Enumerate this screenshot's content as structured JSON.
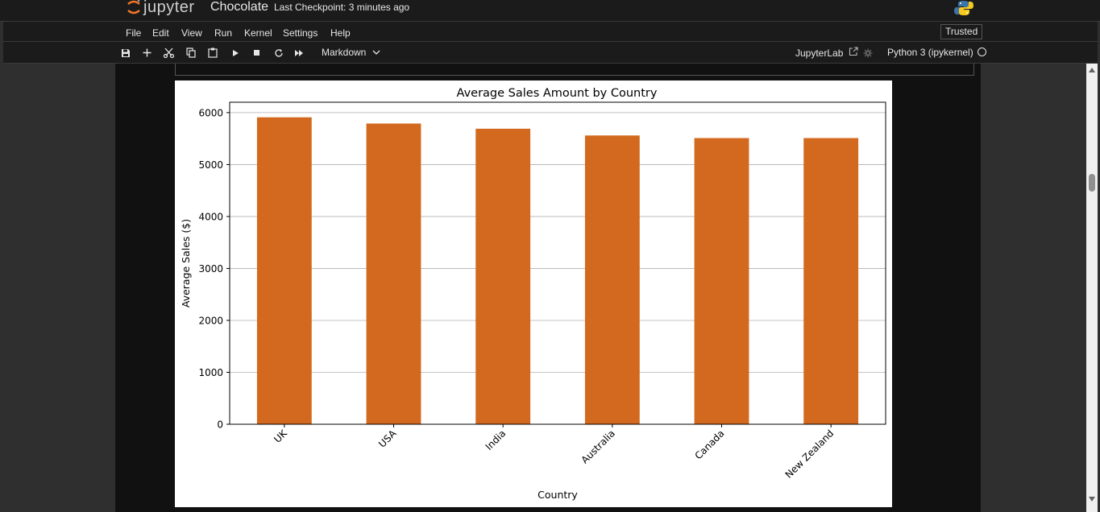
{
  "header": {
    "brand": "jupyter",
    "notebook_title": "Chocolate",
    "checkpoint": "Last Checkpoint: 3 minutes ago",
    "python_icon": "python-logo-icon"
  },
  "menu": {
    "items": [
      "File",
      "Edit",
      "View",
      "Run",
      "Kernel",
      "Settings",
      "Help"
    ],
    "trusted": "Trusted"
  },
  "toolbar": {
    "icons": [
      "save-icon",
      "add-icon",
      "cut-icon",
      "copy-icon",
      "paste-icon",
      "run-icon",
      "stop-icon",
      "restart-icon",
      "fast-forward-icon"
    ],
    "cell_type": "Markdown",
    "jupyterlab_link": "JupyterLab",
    "kernel": "Python 3 (ipykernel)"
  },
  "colors": {
    "bar": "#d2691e",
    "chrome": "#1b1b1b",
    "notebook_bg": "#111111"
  },
  "chart_data": {
    "type": "bar",
    "title": "Average Sales Amount by Country",
    "xlabel": "Country",
    "ylabel": "Average Sales ($)",
    "categories": [
      "UK",
      "USA",
      "India",
      "Australia",
      "Canada",
      "New Zealand"
    ],
    "values": [
      5910,
      5790,
      5690,
      5560,
      5510,
      5510
    ],
    "ylim": [
      0,
      6200
    ],
    "yticks": [
      0,
      1000,
      2000,
      3000,
      4000,
      5000,
      6000
    ],
    "grid": "y",
    "x_tick_rotation": 45
  }
}
